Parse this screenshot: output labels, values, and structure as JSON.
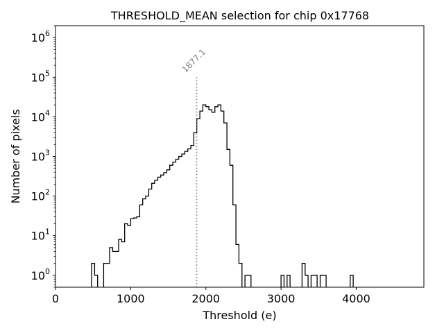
{
  "chart_data": {
    "type": "histogram",
    "title": "THRESHOLD_MEAN selection for chip 0x17768",
    "xlabel": "Threshold (e)",
    "ylabel": "Number of pixels",
    "yscale": "log",
    "xlim": [
      0,
      4900
    ],
    "ylim": [
      0.5,
      2000000
    ],
    "x_ticks": [
      0,
      1000,
      2000,
      3000,
      4000
    ],
    "x_tick_labels": [
      "0",
      "1000",
      "2000",
      "3000",
      "4000"
    ],
    "y_ticks": [
      1,
      10,
      100,
      1000,
      10000,
      100000,
      1000000
    ],
    "y_tick_base": "10",
    "y_tick_exponents": [
      "0",
      "1",
      "2",
      "3",
      "4",
      "5",
      "6"
    ],
    "bin_width": 40,
    "bins": [
      [
        480,
        2
      ],
      [
        520,
        1
      ],
      [
        640,
        2
      ],
      [
        680,
        2
      ],
      [
        720,
        5
      ],
      [
        760,
        4
      ],
      [
        800,
        4
      ],
      [
        840,
        8
      ],
      [
        880,
        7
      ],
      [
        920,
        20
      ],
      [
        960,
        18
      ],
      [
        1000,
        27
      ],
      [
        1040,
        28
      ],
      [
        1080,
        30
      ],
      [
        1120,
        60
      ],
      [
        1160,
        85
      ],
      [
        1200,
        100
      ],
      [
        1240,
        150
      ],
      [
        1280,
        210
      ],
      [
        1320,
        250
      ],
      [
        1360,
        300
      ],
      [
        1400,
        340
      ],
      [
        1440,
        390
      ],
      [
        1480,
        460
      ],
      [
        1520,
        600
      ],
      [
        1560,
        720
      ],
      [
        1600,
        850
      ],
      [
        1640,
        1000
      ],
      [
        1680,
        1150
      ],
      [
        1720,
        1350
      ],
      [
        1760,
        1550
      ],
      [
        1800,
        1900
      ],
      [
        1840,
        4000
      ],
      [
        1880,
        9000
      ],
      [
        1920,
        14000
      ],
      [
        1960,
        20000
      ],
      [
        2000,
        18000
      ],
      [
        2040,
        15000
      ],
      [
        2080,
        13000
      ],
      [
        2120,
        18000
      ],
      [
        2160,
        20000
      ],
      [
        2200,
        14000
      ],
      [
        2240,
        7000
      ],
      [
        2280,
        1500
      ],
      [
        2320,
        600
      ],
      [
        2360,
        60
      ],
      [
        2400,
        6
      ],
      [
        2440,
        2
      ],
      [
        2520,
        1
      ],
      [
        2560,
        1
      ],
      [
        3000,
        1
      ],
      [
        3080,
        1
      ],
      [
        3280,
        2
      ],
      [
        3320,
        1
      ],
      [
        3400,
        1
      ],
      [
        3440,
        1
      ],
      [
        3520,
        1
      ],
      [
        3560,
        1
      ],
      [
        3920,
        1
      ]
    ],
    "marker": {
      "x": 1877.1,
      "label": "1877.1",
      "y_top": 100000,
      "style": "dotted",
      "color": "#808080"
    },
    "line_color": "#000000"
  }
}
